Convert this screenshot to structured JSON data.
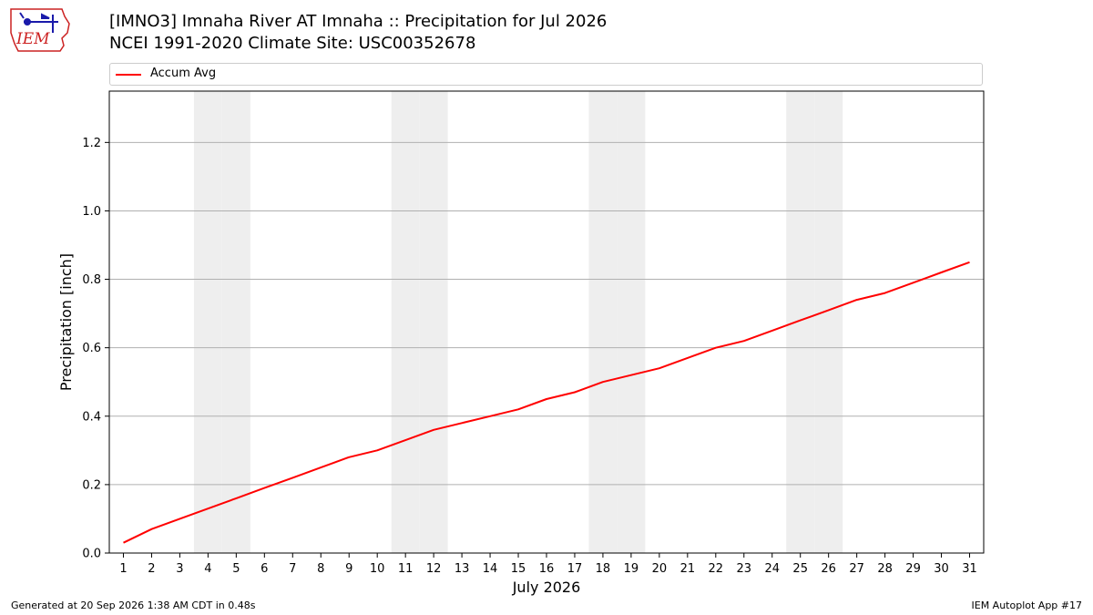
{
  "header": {
    "title_line1": "[IMNO3] Imnaha River  AT Imnaha :: Precipitation for Jul 2026",
    "title_line2": "NCEI 1991-2020 Climate Site: USC00352678",
    "logo_text": "IEM",
    "logo_icon": "iem-iowa-logo-icon"
  },
  "footer": {
    "generated": "Generated at 20 Sep 2026 1:38 AM CDT in 0.48s",
    "app": "IEM Autoplot App #17"
  },
  "colors": {
    "series": "#ff0000",
    "weekend_band": "#eeeeee",
    "grid": "#b0b0b0",
    "logo": "#cc2222",
    "logo_accent": "#1a1aaa"
  },
  "chart_data": {
    "type": "line",
    "xlabel": "July 2026",
    "ylabel": "Precipitation [inch]",
    "x": [
      1,
      2,
      3,
      4,
      5,
      6,
      7,
      8,
      9,
      10,
      11,
      12,
      13,
      14,
      15,
      16,
      17,
      18,
      19,
      20,
      21,
      22,
      23,
      24,
      25,
      26,
      27,
      28,
      29,
      30,
      31
    ],
    "series": [
      {
        "name": "Accum Avg",
        "color": "#ff0000",
        "values": [
          0.03,
          0.07,
          0.1,
          0.13,
          0.16,
          0.19,
          0.22,
          0.25,
          0.28,
          0.3,
          0.33,
          0.36,
          0.38,
          0.4,
          0.42,
          0.45,
          0.47,
          0.5,
          0.52,
          0.54,
          0.57,
          0.6,
          0.62,
          0.65,
          0.68,
          0.71,
          0.74,
          0.76,
          0.79,
          0.82,
          0.85
        ]
      }
    ],
    "xlim": [
      0.5,
      31.5
    ],
    "ylim": [
      0,
      1.35
    ],
    "yticks": [
      0.0,
      0.2,
      0.4,
      0.6,
      0.8,
      1.0,
      1.2
    ],
    "ytick_labels": [
      "0.0",
      "0.2",
      "0.4",
      "0.6",
      "0.8",
      "1.0",
      "1.2"
    ],
    "weekend_days": [
      4,
      5,
      11,
      12,
      18,
      19,
      25,
      26
    ],
    "grid": "horizontal",
    "legend_position": "top"
  }
}
